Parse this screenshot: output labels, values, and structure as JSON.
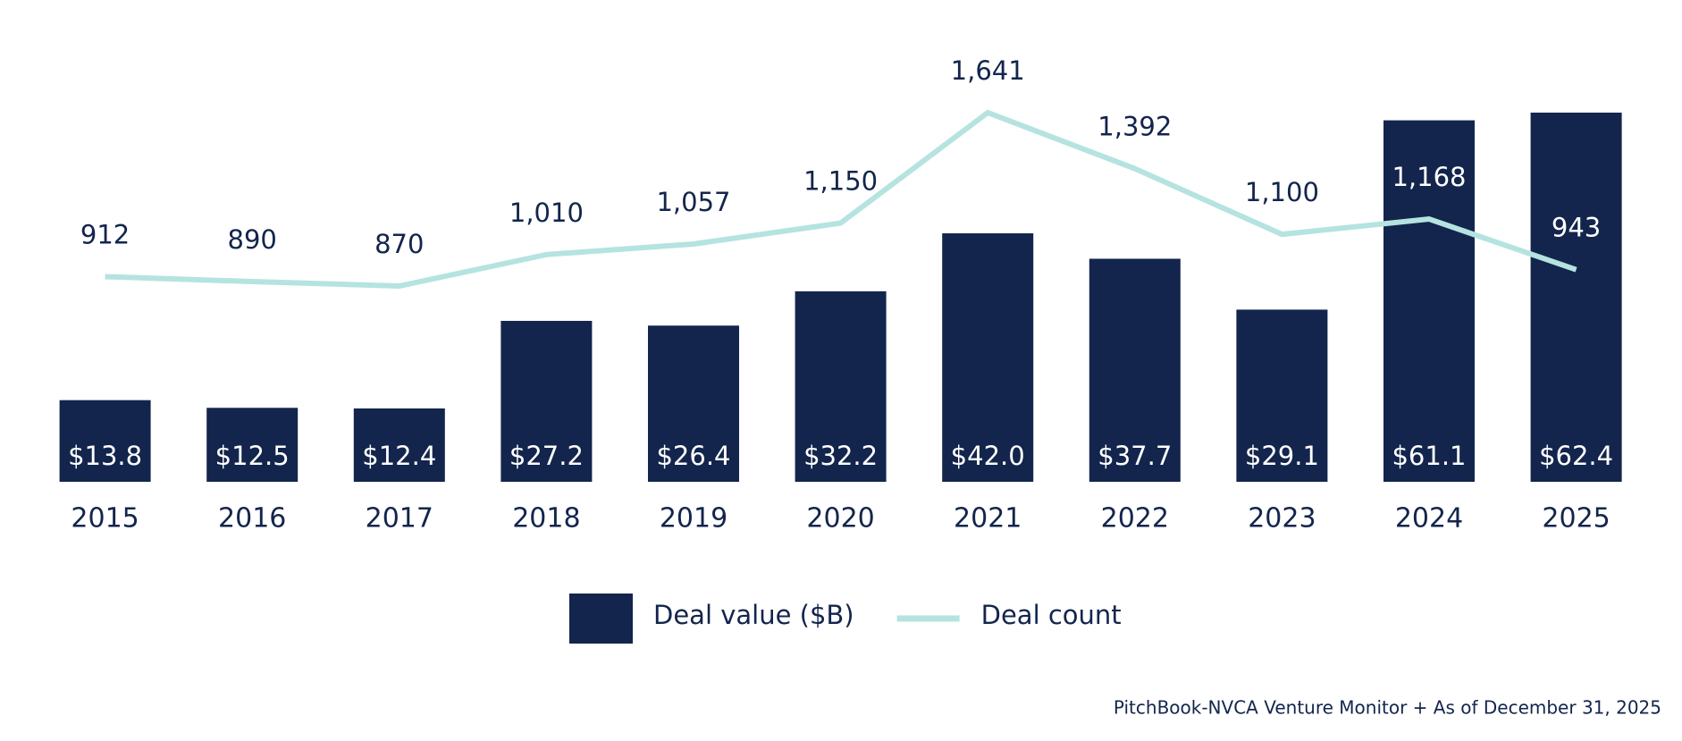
{
  "chart_data": {
    "type": "combo",
    "categories": [
      "2015",
      "2016",
      "2017",
      "2018",
      "2019",
      "2020",
      "2021",
      "2022",
      "2023",
      "2024",
      "2025"
    ],
    "series": [
      {
        "name": "Deal value ($B)",
        "type": "bar",
        "color": "#13254d",
        "values": [
          13.8,
          12.5,
          12.4,
          27.2,
          26.4,
          32.2,
          42.0,
          37.7,
          29.1,
          61.1,
          62.4
        ],
        "value_labels": [
          "$13.8",
          "$12.5",
          "$12.4",
          "$27.2",
          "$26.4",
          "$32.2",
          "$42.0",
          "$37.7",
          "$29.1",
          "$61.1",
          "$62.4"
        ]
      },
      {
        "name": "Deal count",
        "type": "line",
        "axis": "y2",
        "color": "#b5e3e0",
        "values": [
          912,
          890,
          870,
          1010,
          1057,
          1150,
          1641,
          1392,
          1100,
          1168,
          943
        ],
        "value_labels": [
          "912",
          "890",
          "870",
          "1,010",
          "1,057",
          "1,150",
          "1,641",
          "1,392",
          "1,100",
          "1,168",
          "943"
        ]
      }
    ],
    "legend": "bottom",
    "source": "PitchBook-NVCA Venture Monitor + As of December 31, 2025"
  }
}
